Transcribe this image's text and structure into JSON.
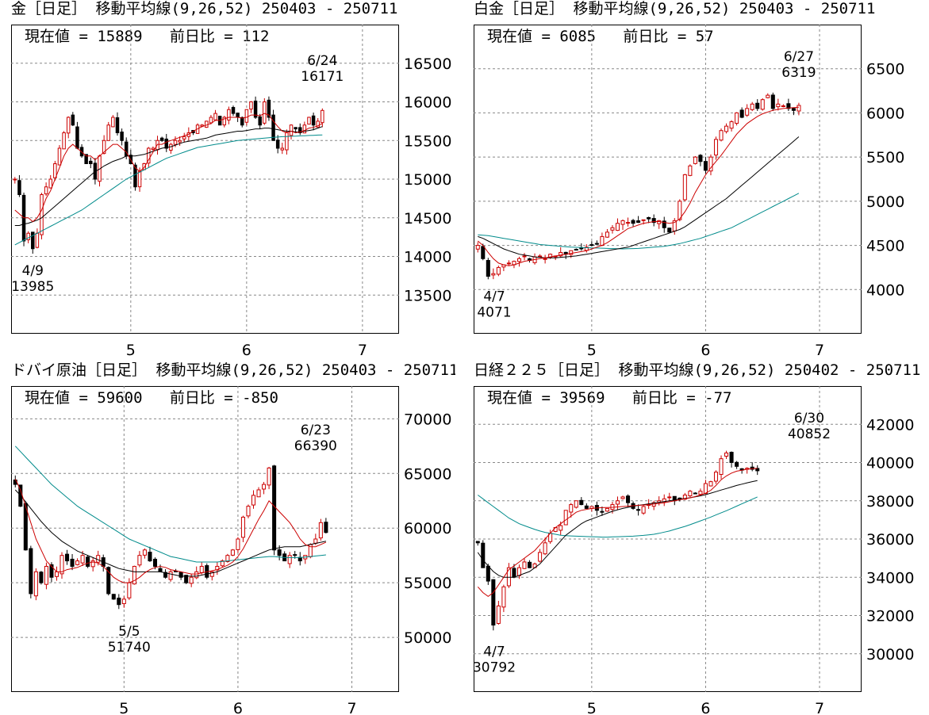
{
  "ui": {
    "colors": {
      "candle_up_outline": "#cc0000",
      "candle_down_fill": "#000000",
      "ma9": "#cc0000",
      "ma26": "#000000",
      "ma52": "#008b8b",
      "grid": "#888888"
    }
  },
  "chart_data": [
    {
      "id": "gold",
      "type": "candlestick",
      "title": "金［日足］ 移動平均線(9,26,52)  250403 - 250711",
      "current_label": "現在値 = 15889",
      "change_label": "前日比 = 112",
      "ylim": [
        13000,
        17000
      ],
      "yticks": [
        13500,
        14000,
        14500,
        15000,
        15500,
        16000,
        16500
      ],
      "xticks": [
        {
          "label": "5",
          "i": 26
        },
        {
          "label": "6",
          "i": 52
        },
        {
          "label": "7",
          "i": 78
        }
      ],
      "n": 86,
      "high_annot": {
        "date": "6/24",
        "value": "16171",
        "i": 69
      },
      "low_annot": {
        "date": "4/9",
        "value": "13985",
        "i": 4
      },
      "close": [
        15000,
        14800,
        14200,
        14300,
        14100,
        14300,
        14800,
        14900,
        15000,
        15200,
        15400,
        15600,
        15800,
        15700,
        15400,
        15300,
        15200,
        15200,
        15000,
        15300,
        15500,
        15700,
        15800,
        15600,
        15500,
        15300,
        15200,
        14900,
        15100,
        15200,
        15400,
        15400,
        15500,
        15500,
        15400,
        15450,
        15500,
        15500,
        15550,
        15600,
        15600,
        15700,
        15700,
        15750,
        15800,
        15850,
        15700,
        15800,
        15900,
        15850,
        15800,
        15700,
        15900,
        16000,
        15800,
        15700,
        16000,
        15800,
        15500,
        15400,
        15400,
        15600,
        15700,
        15650,
        15600,
        15700,
        15800,
        15700,
        15750,
        15889
      ],
      "ma9": [
        14600,
        14550,
        14500,
        14500,
        14450,
        14500,
        14600,
        14750,
        14850,
        15000,
        15150,
        15300,
        15400,
        15450,
        15400,
        15350,
        15300,
        15300,
        15250,
        15300,
        15350,
        15400,
        15450,
        15450,
        15400,
        15350,
        15250,
        15150,
        15100,
        15150,
        15250,
        15350,
        15450,
        15450,
        15480,
        15500,
        15520,
        15540,
        15560,
        15580,
        15620,
        15650,
        15680,
        15700,
        15720,
        15760,
        15760,
        15780,
        15800,
        15800,
        15800,
        15790,
        15800,
        15830,
        15830,
        15820,
        15850,
        15830,
        15750,
        15680,
        15620,
        15600,
        15620,
        15600,
        15610,
        15630,
        15660,
        15670,
        15690,
        15720
      ],
      "ma26": [
        14400,
        14400,
        14420,
        14430,
        14450,
        14470,
        14500,
        14550,
        14600,
        14650,
        14700,
        14750,
        14800,
        14850,
        14900,
        14950,
        15000,
        15050,
        15100,
        15130,
        15170,
        15200,
        15230,
        15250,
        15270,
        15300,
        15300,
        15300,
        15310,
        15320,
        15340,
        15360,
        15380,
        15400,
        15410,
        15420,
        15440,
        15460,
        15480,
        15490,
        15500,
        15510,
        15520,
        15530,
        15550,
        15570,
        15580,
        15590,
        15600,
        15610,
        15620,
        15620,
        15630,
        15640,
        15650,
        15650,
        15660,
        15660,
        15650,
        15640,
        15630,
        15620,
        15620,
        15610,
        15610,
        15620,
        15630,
        15640,
        15660,
        15680
      ],
      "ma52": [
        14150,
        14180,
        14210,
        14240,
        14270,
        14300,
        14330,
        14360,
        14390,
        14420,
        14450,
        14480,
        14510,
        14540,
        14570,
        14600,
        14640,
        14680,
        14720,
        14760,
        14800,
        14840,
        14880,
        14920,
        14960,
        15000,
        15030,
        15060,
        15090,
        15120,
        15150,
        15180,
        15210,
        15240,
        15270,
        15290,
        15310,
        15330,
        15350,
        15370,
        15390,
        15410,
        15420,
        15430,
        15440,
        15450,
        15460,
        15470,
        15480,
        15490,
        15500,
        15505,
        15510,
        15515,
        15520,
        15525,
        15530,
        15535,
        15540,
        15545,
        15550,
        15552,
        15555,
        15557,
        15560,
        15562,
        15565,
        15567,
        15570,
        15572
      ]
    },
    {
      "id": "platinum",
      "type": "candlestick",
      "title": "白金［日足］ 移動平均線(9,26,52)  250403 - 250711",
      "current_label": "現在値 = 6085",
      "change_label": "前日比 = 57",
      "ylim": [
        3500,
        7000
      ],
      "yticks": [
        4000,
        4500,
        5000,
        5500,
        6000,
        6500
      ],
      "xticks": [
        {
          "label": "5",
          "i": 22
        },
        {
          "label": "6",
          "i": 44
        },
        {
          "label": "7",
          "i": 66
        }
      ],
      "n": 74,
      "high_annot": {
        "date": "6/27",
        "value": "6319",
        "i": 62
      },
      "low_annot": {
        "date": "4/7",
        "value": "4071",
        "i": 2
      },
      "close": [
        4500,
        4350,
        4150,
        4180,
        4250,
        4280,
        4300,
        4320,
        4350,
        4380,
        4330,
        4370,
        4380,
        4350,
        4400,
        4380,
        4420,
        4400,
        4440,
        4450,
        4470,
        4480,
        4500,
        4520,
        4600,
        4650,
        4700,
        4750,
        4780,
        4760,
        4750,
        4760,
        4790,
        4800,
        4760,
        4780,
        4700,
        4650,
        4780,
        5000,
        5300,
        5400,
        5500,
        5450,
        5350,
        5500,
        5700,
        5800,
        5850,
        5900,
        6000,
        5950,
        6050,
        6100,
        6050,
        6150,
        6200,
        6050,
        6100,
        6080,
        6050,
        6028,
        6085
      ],
      "ma9": [
        4550,
        4500,
        4420,
        4350,
        4300,
        4280,
        4270,
        4280,
        4300,
        4320,
        4330,
        4340,
        4350,
        4360,
        4370,
        4380,
        4390,
        4400,
        4410,
        4420,
        4430,
        4440,
        4460,
        4480,
        4500,
        4530,
        4570,
        4610,
        4650,
        4690,
        4710,
        4730,
        4750,
        4760,
        4770,
        4770,
        4760,
        4750,
        4760,
        4800,
        4880,
        4980,
        5100,
        5200,
        5300,
        5380,
        5450,
        5520,
        5600,
        5680,
        5760,
        5820,
        5880,
        5920,
        5960,
        5990,
        6010,
        6030,
        6040,
        6050,
        6055,
        6060,
        6065
      ],
      "ma26": [
        4600,
        4580,
        4550,
        4520,
        4490,
        4460,
        4440,
        4420,
        4400,
        4390,
        4380,
        4370,
        4365,
        4360,
        4360,
        4360,
        4365,
        4370,
        4375,
        4380,
        4390,
        4400,
        4410,
        4420,
        4430,
        4440,
        4450,
        4460,
        4470,
        4480,
        4500,
        4520,
        4540,
        4560,
        4580,
        4600,
        4620,
        4640,
        4660,
        4680,
        4710,
        4750,
        4790,
        4830,
        4870,
        4910,
        4950,
        4990,
        5030,
        5080,
        5130,
        5180,
        5230,
        5280,
        5330,
        5380,
        5430,
        5480,
        5530,
        5580,
        5630,
        5680,
        5730
      ],
      "ma52": [
        4620,
        4615,
        4610,
        4600,
        4590,
        4580,
        4570,
        4560,
        4550,
        4540,
        4530,
        4520,
        4510,
        4505,
        4500,
        4495,
        4490,
        4485,
        4480,
        4478,
        4476,
        4474,
        4472,
        4470,
        4468,
        4466,
        4464,
        4462,
        4460,
        4462,
        4464,
        4466,
        4470,
        4475,
        4480,
        4485,
        4490,
        4500,
        4510,
        4520,
        4535,
        4550,
        4565,
        4580,
        4600,
        4620,
        4640,
        4660,
        4680,
        4700,
        4730,
        4760,
        4790,
        4820,
        4850,
        4880,
        4910,
        4940,
        4970,
        5000,
        5030,
        5060,
        5090
      ]
    },
    {
      "id": "dubai",
      "type": "candlestick",
      "title": "ドバイ原油［日足］ 移動平均線(9,26,52)  250403 - 250711",
      "current_label": "現在値 = 59600",
      "change_label": "前日比 = -850",
      "ylim": [
        45000,
        73000
      ],
      "yticks": [
        50000,
        55000,
        60000,
        65000,
        70000
      ],
      "xticks": [
        {
          "label": "5",
          "i": 21
        },
        {
          "label": "6",
          "i": 43
        },
        {
          "label": "7",
          "i": 65
        }
      ],
      "n": 74,
      "high_annot": {
        "date": "6/23",
        "value": "66390",
        "i": 58
      },
      "low_annot": {
        "date": "5/5",
        "value": "51740",
        "i": 22
      },
      "close": [
        64000,
        62000,
        58000,
        54000,
        56000,
        55000,
        56500,
        55500,
        56000,
        57500,
        57000,
        56500,
        57000,
        57500,
        56500,
        57000,
        57500,
        56500,
        54000,
        53500,
        53000,
        53500,
        55000,
        56500,
        57500,
        58000,
        57000,
        56500,
        56000,
        55500,
        56000,
        56000,
        55500,
        55000,
        55500,
        56000,
        56500,
        55500,
        56000,
        56500,
        57000,
        57500,
        58000,
        59000,
        61000,
        62000,
        63000,
        63500,
        64000,
        65500,
        58000,
        57500,
        57000,
        57500,
        57500,
        57000,
        57500,
        58500,
        59000,
        60500,
        59600
      ],
      "ma9": [
        64500,
        63500,
        62000,
        60500,
        59000,
        58000,
        57000,
        56500,
        56000,
        56000,
        56200,
        56300,
        56400,
        56600,
        56800,
        56900,
        56800,
        56500,
        56000,
        55500,
        55200,
        55000,
        55000,
        55200,
        55500,
        55900,
        56200,
        56400,
        56500,
        56400,
        56200,
        56100,
        56000,
        55900,
        55800,
        55800,
        55900,
        56000,
        56100,
        56200,
        56400,
        56600,
        56900,
        57400,
        58100,
        59000,
        59900,
        60800,
        61600,
        62500,
        62000,
        61500,
        61000,
        60500,
        59800,
        59000,
        58500,
        58300,
        58300,
        58500,
        58700
      ],
      "ma26": [
        63500,
        63000,
        62400,
        61800,
        61200,
        60600,
        60100,
        59600,
        59200,
        58800,
        58500,
        58200,
        57900,
        57700,
        57500,
        57300,
        57100,
        56900,
        56700,
        56500,
        56300,
        56200,
        56100,
        56000,
        56000,
        56000,
        56000,
        56000,
        56000,
        55900,
        55800,
        55700,
        55600,
        55600,
        55600,
        55600,
        55700,
        55800,
        55900,
        56000,
        56200,
        56400,
        56600,
        56800,
        57000,
        57200,
        57400,
        57600,
        57800,
        58000,
        58100,
        58200,
        58300,
        58300,
        58300,
        58300,
        58400,
        58500,
        58600,
        58700,
        58800
      ],
      "ma52": [
        67500,
        67000,
        66500,
        66000,
        65500,
        65000,
        64500,
        64000,
        63600,
        63200,
        62800,
        62400,
        62000,
        61700,
        61400,
        61100,
        60800,
        60500,
        60200,
        59900,
        59600,
        59300,
        59000,
        58800,
        58600,
        58400,
        58200,
        58000,
        57800,
        57600,
        57400,
        57300,
        57200,
        57100,
        57000,
        56900,
        56900,
        56900,
        56900,
        56900,
        56950,
        57000,
        57050,
        57100,
        57150,
        57200,
        57250,
        57300,
        57350,
        57400,
        57400,
        57350,
        57300,
        57300,
        57300,
        57300,
        57350,
        57400,
        57450,
        57500,
        57550
      ]
    },
    {
      "id": "nikkei",
      "type": "candlestick",
      "title": "日経２２５［日足］ 移動平均線(9,26,52)  250402 - 250711",
      "current_label": "現在値 = 39569",
      "change_label": "前日比 = -77",
      "ylim": [
        28000,
        44000
      ],
      "yticks": [
        30000,
        32000,
        34000,
        36000,
        38000,
        40000,
        42000
      ],
      "xticks": [
        {
          "label": "5",
          "i": 22
        },
        {
          "label": "6",
          "i": 44
        },
        {
          "label": "7",
          "i": 66
        }
      ],
      "n": 74,
      "high_annot": {
        "date": "6/30",
        "value": "40852",
        "i": 64
      },
      "low_annot": {
        "date": "4/7",
        "value": "30792",
        "i": 3
      },
      "close": [
        35800,
        34500,
        33800,
        31500,
        32500,
        33500,
        34500,
        34000,
        34500,
        34800,
        34500,
        34700,
        35300,
        35800,
        36300,
        36600,
        36700,
        37500,
        37800,
        38000,
        37800,
        37600,
        37700,
        37500,
        37400,
        37600,
        37800,
        38000,
        38200,
        37900,
        37600,
        37500,
        37700,
        37800,
        37900,
        38000,
        38100,
        38200,
        38000,
        38100,
        38300,
        38500,
        38400,
        38500,
        38900,
        39000,
        39500,
        40200,
        40500,
        40000,
        39800,
        39600,
        39700,
        39646,
        39569
      ],
      "ma9": [
        33500,
        33200,
        33000,
        33200,
        33600,
        34000,
        34400,
        34600,
        34800,
        35000,
        35200,
        35400,
        35700,
        36000,
        36300,
        36600,
        36800,
        37000,
        37200,
        37400,
        37500,
        37550,
        37600,
        37620,
        37640,
        37650,
        37660,
        37680,
        37700,
        37720,
        37740,
        37760,
        37780,
        37800,
        37830,
        37860,
        37900,
        37950,
        38000,
        38050,
        38100,
        38150,
        38220,
        38300,
        38400,
        38550,
        38800,
        39100,
        39300,
        39450,
        39550,
        39600,
        39650,
        39680,
        39700
      ],
      "ma26": [
        35300,
        34900,
        34600,
        34300,
        34100,
        34000,
        34000,
        34000,
        34100,
        34200,
        34300,
        34500,
        34700,
        35000,
        35300,
        35600,
        35900,
        36200,
        36400,
        36600,
        36800,
        36950,
        37050,
        37150,
        37250,
        37350,
        37450,
        37530,
        37600,
        37660,
        37710,
        37760,
        37800,
        37840,
        37880,
        37920,
        37960,
        38000,
        38040,
        38080,
        38120,
        38160,
        38210,
        38260,
        38320,
        38400,
        38480,
        38560,
        38640,
        38720,
        38800,
        38870,
        38940,
        39000,
        39060
      ],
      "ma52": [
        38300,
        38100,
        37900,
        37700,
        37500,
        37300,
        37100,
        36950,
        36800,
        36700,
        36600,
        36500,
        36420,
        36350,
        36300,
        36250,
        36200,
        36180,
        36160,
        36150,
        36140,
        36130,
        36120,
        36110,
        36100,
        36100,
        36110,
        36120,
        36130,
        36140,
        36150,
        36170,
        36190,
        36220,
        36250,
        36300,
        36360,
        36420,
        36500,
        36580,
        36660,
        36750,
        36850,
        36950,
        37050,
        37150,
        37260,
        37370,
        37480,
        37600,
        37720,
        37840,
        37960,
        38080,
        38200
      ]
    }
  ]
}
